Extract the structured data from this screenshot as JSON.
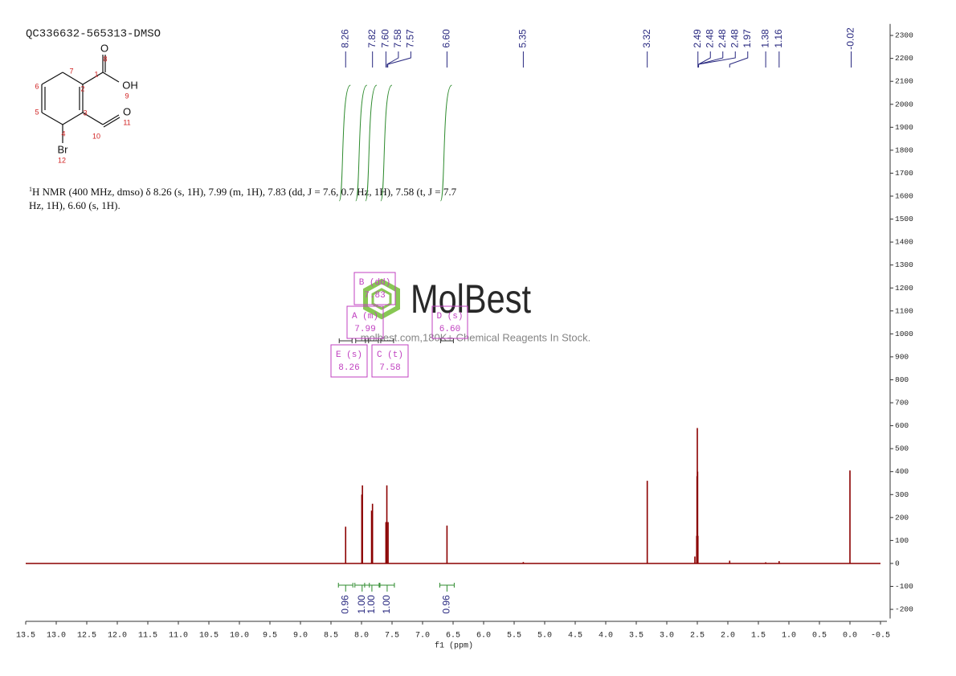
{
  "chart_data": {
    "type": "nmr",
    "title": "QC336632-565313-DMSO",
    "xlabel": "f1 (ppm)",
    "xlim": [
      13.5,
      -0.5
    ],
    "xticks": [
      13.5,
      {
        "value": 13,
        "label": "13.0"
      },
      12.5,
      {
        "value": 12,
        "label": "12.0"
      },
      11.5,
      {
        "value": 11,
        "label": "11.0"
      },
      10.5,
      {
        "value": 10,
        "label": "10.0"
      },
      9.5,
      {
        "value": 9,
        "label": "9.0"
      },
      8.5,
      {
        "value": 8,
        "label": "8.0"
      },
      7.5,
      {
        "value": 7,
        "label": "7.0"
      },
      6.5,
      {
        "value": 6,
        "label": "6.0"
      },
      5.5,
      {
        "value": 5,
        "label": "5.0"
      },
      4.5,
      {
        "value": 4,
        "label": "4.0"
      },
      3.5,
      {
        "value": 3,
        "label": "3.0"
      },
      2.5,
      {
        "value": 2,
        "label": "2.0"
      },
      1.5,
      {
        "value": 1,
        "label": "1.0"
      },
      0.5,
      {
        "value": 0,
        "label": "0.0"
      },
      -0.5
    ],
    "ylim": [
      -240,
      2350
    ],
    "yticks": [
      -200,
      -100,
      0,
      100,
      200,
      300,
      400,
      500,
      600,
      700,
      800,
      900,
      1000,
      1100,
      1200,
      1300,
      1400,
      1500,
      1600,
      1700,
      1800,
      1900,
      2000,
      2100,
      2200,
      2300
    ],
    "y_axis_side": "right",
    "color": "#8b0000",
    "x": [
      8.26,
      7.995,
      7.985,
      7.835,
      7.82,
      7.6,
      7.585,
      7.565,
      6.6,
      5.35,
      3.32,
      2.54,
      2.51,
      2.505,
      2.5,
      2.495,
      2.49,
      1.97,
      1.38,
      1.16,
      0.0
    ],
    "values": [
      160,
      300,
      340,
      230,
      260,
      180,
      340,
      180,
      165,
      6,
      360,
      30,
      120,
      380,
      590,
      400,
      120,
      12,
      5,
      10,
      405
    ],
    "peak_labels": [
      8.26,
      7.82,
      {
        "value": 7.6,
        "label": "7.60"
      },
      7.58,
      7.57,
      {
        "value": 6.6,
        "label": "6.60"
      },
      5.35,
      3.32,
      2.49,
      2.48,
      2.48,
      2.48,
      1.97,
      1.38,
      1.16,
      -0.02
    ],
    "peak_label_color": "#27277f",
    "integrals": {
      "x": [
        8.26,
        7.99,
        7.83,
        7.58,
        6.6
      ],
      "values": [
        0.96,
        1,
        1,
        1,
        0.96
      ],
      "value_labels": [
        "0.96",
        "1.00",
        "1.00",
        "1.00",
        "0.96"
      ],
      "color": "#2e8b2e"
    },
    "multiplets": [
      {
        "name": "B (dd)",
        "shift": 7.83
      },
      {
        "name": "A (m)",
        "shift": 7.99
      },
      {
        "name": "D (s)",
        "shift": {
          "value": 6.6,
          "label": "6.60"
        }
      },
      {
        "name": "E (s)",
        "shift": 8.26
      },
      {
        "name": "C (t)",
        "shift": 7.58
      }
    ],
    "multiplet_color": "#c040c0"
  },
  "description_isotope": 1,
  "description": [
    "H NMR (400 MHz, dmso) δ 8.26 (s, 1H), 7.99 (m, 1H), 7.83 (dd, J = 7.6, 0.7 Hz, 1H), 7.58 (t, J = 7.7",
    "Hz, 1H), 6.60 (s, 1H)."
  ],
  "watermark": "MolBest",
  "watermark_sub": "molbest.com,180K+ Chemical Reagents In Stock.",
  "structure": {
    "atoms": [
      "O",
      "OH",
      "O",
      "Br"
    ],
    "numbers": [
      8,
      1,
      9,
      7,
      2,
      6,
      5,
      3,
      10,
      11,
      4,
      12
    ]
  }
}
